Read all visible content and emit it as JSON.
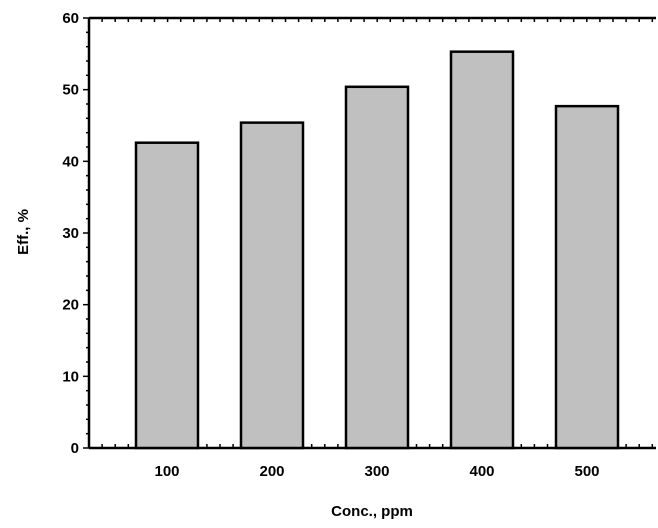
{
  "chart_data": {
    "type": "bar",
    "categories": [
      "100",
      "200",
      "300",
      "400",
      "500"
    ],
    "values": [
      42.6,
      45.4,
      50.4,
      55.3,
      47.7
    ],
    "title": "",
    "xlabel": "Conc., ppm",
    "ylabel": "Eff., %",
    "ylim": [
      0,
      60
    ],
    "yticks": [
      0,
      10,
      20,
      30,
      40,
      50,
      60
    ],
    "grid": false,
    "legend": "none",
    "bar_color": "#c0c0c0",
    "edge_color": "#000000"
  }
}
